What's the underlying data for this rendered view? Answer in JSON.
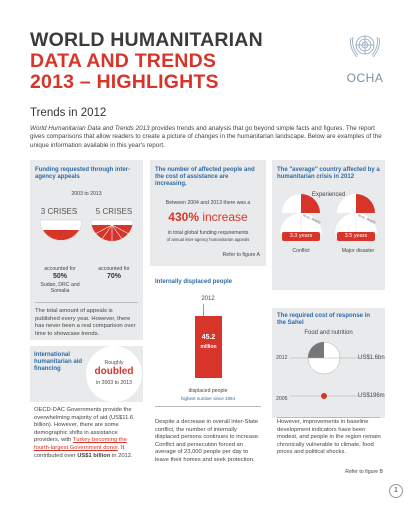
{
  "header": {
    "line1": "WORLD HUMANITARIAN",
    "line2": "DATA AND TRENDS",
    "line3": "2013 – HIGHLIGHTS",
    "org": "OCHA"
  },
  "section_title": "Trends in 2012",
  "intro": "World Humanitarian Data and Trends 2013 provides trends and analysis that go beyond simple facts and figures. The report gives comparisons that allow readers to create a picture of changes in the humanitarian landscape. Below are examples of the unique information available in this year's report.",
  "funding": {
    "title": "Funding requested through inter-agency appeals",
    "years": "2003 to 2013",
    "left_label": "3 CRISES",
    "right_label": "5 CRISES",
    "left_caption": "accounted for",
    "left_pct": "50%",
    "left_sub": "Sudan, DRC and Somalia",
    "right_caption": "accounted for",
    "right_pct": "70%",
    "body": "The total amount of appeals is published every year. However, there has never been a real comparison over time to showcase trends.",
    "left_fill": 0.5,
    "right_fill": 0.7
  },
  "affected": {
    "title": "The number of affected people and the cost of assistance are increasing.",
    "between": "Between 2004 and 2013 there was a",
    "big": "430% increase",
    "note1": "in total global funding requirements",
    "note2": "of annual inter-agency humanitarian appeals",
    "refer": "Refer to figure A"
  },
  "average": {
    "title": "The \"average\" country affected by a humanitarian crisis in 2012",
    "experienced": "Experienced",
    "to_label": "to re...RNED",
    "left_val": "3.3 years",
    "right_val": "3.5 years",
    "left_cap": "Conflict",
    "right_cap": "Major disaster"
  },
  "aid": {
    "title": "International humanitarian aid financing",
    "roughly": "Roughly",
    "doubled": "doubled",
    "years": "in 2003 to 2013",
    "body1": "OECD-DAC Governments provide the overwhelming majority of aid (US$11.6 billion). However, there are some demographic shifts in assistance providers, with ",
    "link": "Turkey becoming the fourth-largest Government donor",
    "body2": ". It contributed over ",
    "amount": "US$1 billion",
    "body3": " in 2012."
  },
  "idp": {
    "title": "Internally displaced people",
    "year": "2012",
    "value": "45.2",
    "unit": "million",
    "caption": "displaced people",
    "sub": "highest number since 1994",
    "body": "Despite a decrease in overall inter-State conflict, the number of internally displaced persons continues to increase. Conflict and persecution forced an average of 23,000 people per day to leave their homes and seek protection."
  },
  "sahel": {
    "title": "The required cost of response in the Sahel",
    "subtitle": "Food and nutrition",
    "year1": "2012",
    "val1": "US$1.6bn",
    "year2": "2005",
    "val2": "US$196m",
    "body": "However, improvements in baseline development indicators have been modest, and people in the region remain chronically vulnerable to climate, food prices and political shocks.",
    "refer": "Refer to figure B"
  },
  "page_number": "1",
  "colors": {
    "red": "#d7352a",
    "blue": "#2f6aa6",
    "panel": "#e9eaeb"
  }
}
